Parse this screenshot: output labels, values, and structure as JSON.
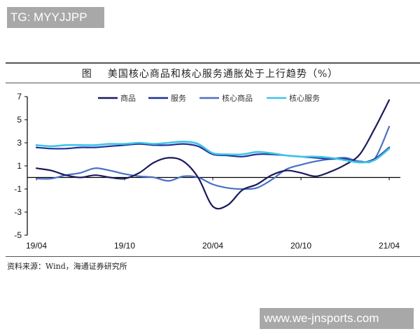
{
  "watermarks": {
    "top": "TG: MYYJJPP",
    "bottom": "www.we-jnsports.com"
  },
  "figure": {
    "label": "图",
    "title": "美国核心商品和核心服务通胀处于上行趋势（%）",
    "source": "资料来源：Wind，海通证券研究所"
  },
  "chart_data": {
    "type": "line",
    "title": "美国核心商品和核心服务通胀处于上行趋势（%）",
    "xlabel": "",
    "ylabel": "%",
    "ylim": [
      -5,
      7
    ],
    "yticks": [
      7,
      5,
      3,
      1,
      -1,
      -3,
      -5
    ],
    "xtick_labels": [
      "19/04",
      "19/10",
      "20/04",
      "20/10",
      "21/04"
    ],
    "grid": false,
    "legend_position": "top",
    "x": [
      "19/04",
      "19/05",
      "19/06",
      "19/07",
      "19/08",
      "19/09",
      "19/10",
      "19/11",
      "19/12",
      "20/01",
      "20/02",
      "20/03",
      "20/04",
      "20/05",
      "20/06",
      "20/07",
      "20/08",
      "20/09",
      "20/10",
      "20/11",
      "20/12",
      "21/01",
      "21/02",
      "21/03",
      "21/04"
    ],
    "series": [
      {
        "name": "商品",
        "color": "#1a1a5e",
        "values": [
          0.8,
          0.6,
          0.2,
          0.0,
          0.2,
          0.0,
          -0.1,
          0.4,
          1.3,
          1.7,
          1.4,
          0.0,
          -2.5,
          -2.4,
          -1.1,
          -0.6,
          0.2,
          0.6,
          0.4,
          0.1,
          0.5,
          1.1,
          2.0,
          4.2,
          6.7
        ]
      },
      {
        "name": "服务",
        "color": "#1f2f9a",
        "values": [
          2.6,
          2.5,
          2.5,
          2.6,
          2.6,
          2.7,
          2.8,
          2.9,
          2.8,
          2.8,
          2.9,
          2.7,
          2.0,
          1.9,
          1.8,
          2.0,
          2.0,
          1.9,
          1.8,
          1.7,
          1.6,
          1.6,
          1.3,
          1.6,
          2.6
        ]
      },
      {
        "name": "核心商品",
        "color": "#4a6fc4",
        "values": [
          -0.1,
          -0.1,
          0.2,
          0.4,
          0.8,
          0.6,
          0.3,
          0.1,
          0.0,
          -0.3,
          0.1,
          0.0,
          -0.6,
          -0.9,
          -1.0,
          -0.9,
          -0.2,
          0.7,
          1.1,
          1.4,
          1.6,
          1.7,
          1.4,
          1.6,
          4.4
        ]
      },
      {
        "name": "核心服务",
        "color": "#3fc4e8",
        "values": [
          2.8,
          2.7,
          2.8,
          2.8,
          2.8,
          2.9,
          2.9,
          3.0,
          2.9,
          3.0,
          3.1,
          2.9,
          2.1,
          2.0,
          2.0,
          2.2,
          2.1,
          1.9,
          1.8,
          1.8,
          1.7,
          1.5,
          1.3,
          1.5,
          2.5
        ]
      }
    ]
  }
}
